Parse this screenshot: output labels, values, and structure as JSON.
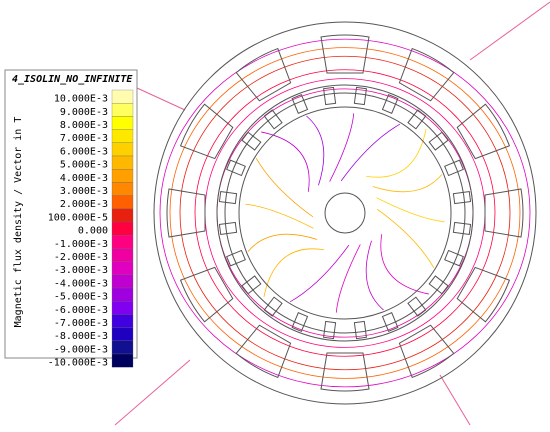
{
  "legend": {
    "title": "4_ISOLIN_NO_INFINITE",
    "quantity": "Magnetic flux density / Vector in T",
    "levels": [
      {
        "label": "10.000E-3",
        "color": "#fffcb0"
      },
      {
        "label": "9.000E-3",
        "color": "#ffff60"
      },
      {
        "label": "8.000E-3",
        "color": "#ffff00"
      },
      {
        "label": "7.000E-3",
        "color": "#ffe800"
      },
      {
        "label": "6.000E-3",
        "color": "#ffd000"
      },
      {
        "label": "5.000E-3",
        "color": "#ffb800"
      },
      {
        "label": "4.000E-3",
        "color": "#ffa000"
      },
      {
        "label": "3.000E-3",
        "color": "#ff8800"
      },
      {
        "label": "2.000E-3",
        "color": "#ff6000"
      },
      {
        "label": "100.000E-5",
        "color": "#e82010"
      },
      {
        "label": "0.000",
        "color": "#ff0040"
      },
      {
        "label": "-1.000E-3",
        "color": "#ff0080"
      },
      {
        "label": "-2.000E-3",
        "color": "#f000a0"
      },
      {
        "label": "-3.000E-3",
        "color": "#e000c0"
      },
      {
        "label": "-4.000E-3",
        "color": "#c000d0"
      },
      {
        "label": "-5.000E-3",
        "color": "#a000e0"
      },
      {
        "label": "-6.000E-3",
        "color": "#8000f0"
      },
      {
        "label": "-7.000E-3",
        "color": "#4000e0"
      },
      {
        "label": "-8.000E-3",
        "color": "#2000c0"
      },
      {
        "label": "-9.000E-3",
        "color": "#101090"
      },
      {
        "label": "-10.000E-3",
        "color": "#000060"
      }
    ]
  }
}
